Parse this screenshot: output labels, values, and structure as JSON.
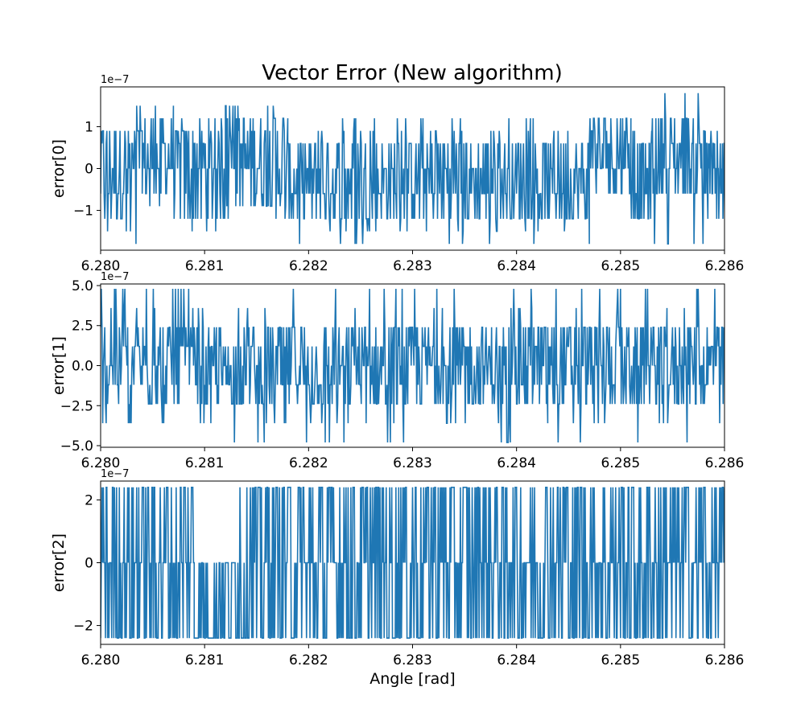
{
  "chart_data": [
    {
      "type": "line",
      "title": "Vector Error (New algorithm)",
      "ylabel": "error[0]",
      "xlabel": "",
      "offset_text": "1e−7",
      "xlim": [
        6.28,
        6.286
      ],
      "ylim": [
        -1.95,
        1.95
      ],
      "xticks": [
        6.28,
        6.281,
        6.282,
        6.283,
        6.284,
        6.285,
        6.286
      ],
      "xtick_labels": [
        "6.280",
        "6.281",
        "6.282",
        "6.283",
        "6.284",
        "6.285",
        "6.286"
      ],
      "yticks": [
        -1,
        0,
        1
      ],
      "ytick_labels": [
        "−1",
        "0",
        "1"
      ],
      "grid": false,
      "series": [
        {
          "color": "#1f77b4",
          "description": "dense quantized noise",
          "segments": [
            {
              "x0": 6.28,
              "x1": 6.2804,
              "levels": [
                -1.2,
                -0.6,
                0,
                0.6,
                0.9
              ],
              "spikes": [
                1.5,
                -1.5,
                -1.8
              ]
            },
            {
              "x0": 6.2804,
              "x1": 6.2807,
              "levels": [
                -0.6,
                0,
                0.6,
                1.2
              ],
              "spikes": [
                1.5,
                -0.9
              ]
            },
            {
              "x0": 6.2807,
              "x1": 6.2812,
              "levels": [
                -1.2,
                -0.6,
                0,
                0.6,
                0.9
              ],
              "spikes": [
                -1.5,
                1.2
              ]
            },
            {
              "x0": 6.2812,
              "x1": 6.2818,
              "levels": [
                -0.9,
                -0.6,
                0,
                0.6,
                0.9,
                1.2
              ],
              "spikes": [
                1.5,
                -1.2
              ]
            },
            {
              "x0": 6.2818,
              "x1": 6.2847,
              "levels": [
                -1.2,
                -0.6,
                0,
                0.6
              ],
              "spikes": [
                -1.5,
                -1.8,
                0.9,
                1.2
              ]
            },
            {
              "x0": 6.2847,
              "x1": 6.2851,
              "levels": [
                -0.6,
                0,
                0.6,
                1.2
              ],
              "spikes": [
                0.9
              ]
            },
            {
              "x0": 6.2851,
              "x1": 6.2853,
              "levels": [
                -1.2,
                -0.6,
                0,
                0.6
              ],
              "spikes": [
                0.9
              ]
            },
            {
              "x0": 6.2853,
              "x1": 6.2858,
              "levels": [
                -0.6,
                0,
                0.6,
                1.2
              ],
              "spikes": [
                1.8,
                -1.8
              ]
            },
            {
              "x0": 6.2858,
              "x1": 6.286,
              "levels": [
                -1.2,
                -0.6,
                0,
                0.6
              ],
              "spikes": [
                0.9
              ]
            }
          ]
        }
      ]
    },
    {
      "type": "line",
      "title": "",
      "ylabel": "error[1]",
      "xlabel": "",
      "offset_text": "1e−7",
      "xlim": [
        6.28,
        6.286
      ],
      "ylim": [
        -5.1,
        5.1
      ],
      "xticks": [
        6.28,
        6.281,
        6.282,
        6.283,
        6.284,
        6.285,
        6.286
      ],
      "xtick_labels": [
        "6.280",
        "6.281",
        "6.282",
        "6.283",
        "6.284",
        "6.285",
        "6.286"
      ],
      "yticks": [
        -5.0,
        -2.5,
        0.0,
        2.5,
        5.0
      ],
      "ytick_labels": [
        "−5.0",
        "−2.5",
        "0.0",
        "2.5",
        "5.0"
      ],
      "grid": false,
      "series": [
        {
          "color": "#1f77b4",
          "description": "dense quantized noise",
          "segments": [
            {
              "x0": 6.28,
              "x1": 6.281,
              "levels": [
                -2.4,
                -1.2,
                0,
                1.2,
                2.4
              ],
              "spikes": [
                3.6,
                4.8,
                -3.6
              ]
            },
            {
              "x0": 6.281,
              "x1": 6.2813,
              "levels": [
                -2.4,
                -1.2,
                0,
                1.2
              ],
              "spikes": [
                -3.6,
                -4.8,
                2.4
              ]
            },
            {
              "x0": 6.2813,
              "x1": 6.2843,
              "levels": [
                -2.4,
                -1.2,
                0,
                1.2,
                2.4
              ],
              "spikes": [
                3.6,
                4.8,
                -3.6,
                -4.8
              ]
            },
            {
              "x0": 6.2843,
              "x1": 6.286,
              "levels": [
                -2.4,
                -1.2,
                0,
                1.2,
                2.4
              ],
              "spikes": [
                3.6,
                4.8,
                -3.6,
                -4.8
              ]
            }
          ]
        }
      ]
    },
    {
      "type": "line",
      "title": "",
      "ylabel": "error[2]",
      "xlabel": "Angle [rad]",
      "offset_text": "1e−7",
      "xlim": [
        6.28,
        6.286
      ],
      "ylim": [
        -2.6,
        2.6
      ],
      "xticks": [
        6.28,
        6.281,
        6.282,
        6.283,
        6.284,
        6.285,
        6.286
      ],
      "xtick_labels": [
        "6.280",
        "6.281",
        "6.282",
        "6.283",
        "6.284",
        "6.285",
        "6.286"
      ],
      "yticks": [
        -2,
        0,
        2
      ],
      "ytick_labels": [
        "−2",
        "0",
        "2"
      ],
      "grid": false,
      "series": [
        {
          "color": "#1f77b4",
          "description": "switching between 0 and ±2.4 plateaus",
          "segments": [
            {
              "x0": 6.28,
              "x1": 6.2809,
              "levels": [
                -2.4,
                0,
                2.4
              ],
              "spikes": []
            },
            {
              "x0": 6.2809,
              "x1": 6.2813,
              "levels": [
                -2.4,
                0
              ],
              "spikes": []
            },
            {
              "x0": 6.2813,
              "x1": 6.286,
              "levels": [
                -2.4,
                0,
                2.4
              ],
              "spikes": []
            }
          ]
        }
      ]
    }
  ]
}
